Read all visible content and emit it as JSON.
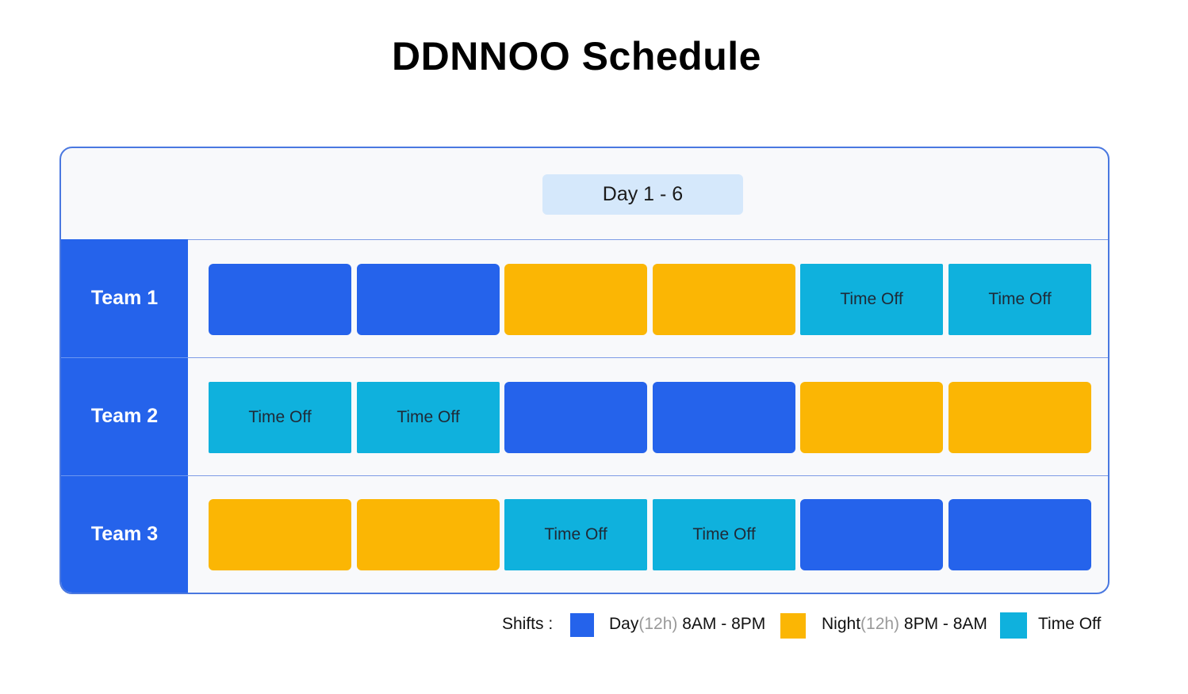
{
  "title": "DDNNOO Schedule",
  "header": {
    "period": "Day 1 - 6"
  },
  "colors": {
    "day": "#2563eb",
    "night": "#fbb604",
    "off": "#0fb1dd",
    "team_column": "#2563eb"
  },
  "teams": [
    {
      "label": "Team 1",
      "shifts": [
        "day",
        "day",
        "night",
        "night",
        "off",
        "off"
      ]
    },
    {
      "label": "Team 2",
      "shifts": [
        "off",
        "off",
        "day",
        "day",
        "night",
        "night"
      ]
    },
    {
      "label": "Team 3",
      "shifts": [
        "night",
        "night",
        "off",
        "off",
        "day",
        "day"
      ]
    }
  ],
  "cell_text": {
    "off": "Time Off"
  },
  "legend": {
    "heading": "Shifts :",
    "day": {
      "name": "Day",
      "duration": "(12h)",
      "hours": " 8AM - 8PM"
    },
    "night": {
      "name": "Night",
      "duration": "(12h)",
      "hours": " 8PM - 8AM"
    },
    "off": {
      "name": "Time Off"
    }
  }
}
